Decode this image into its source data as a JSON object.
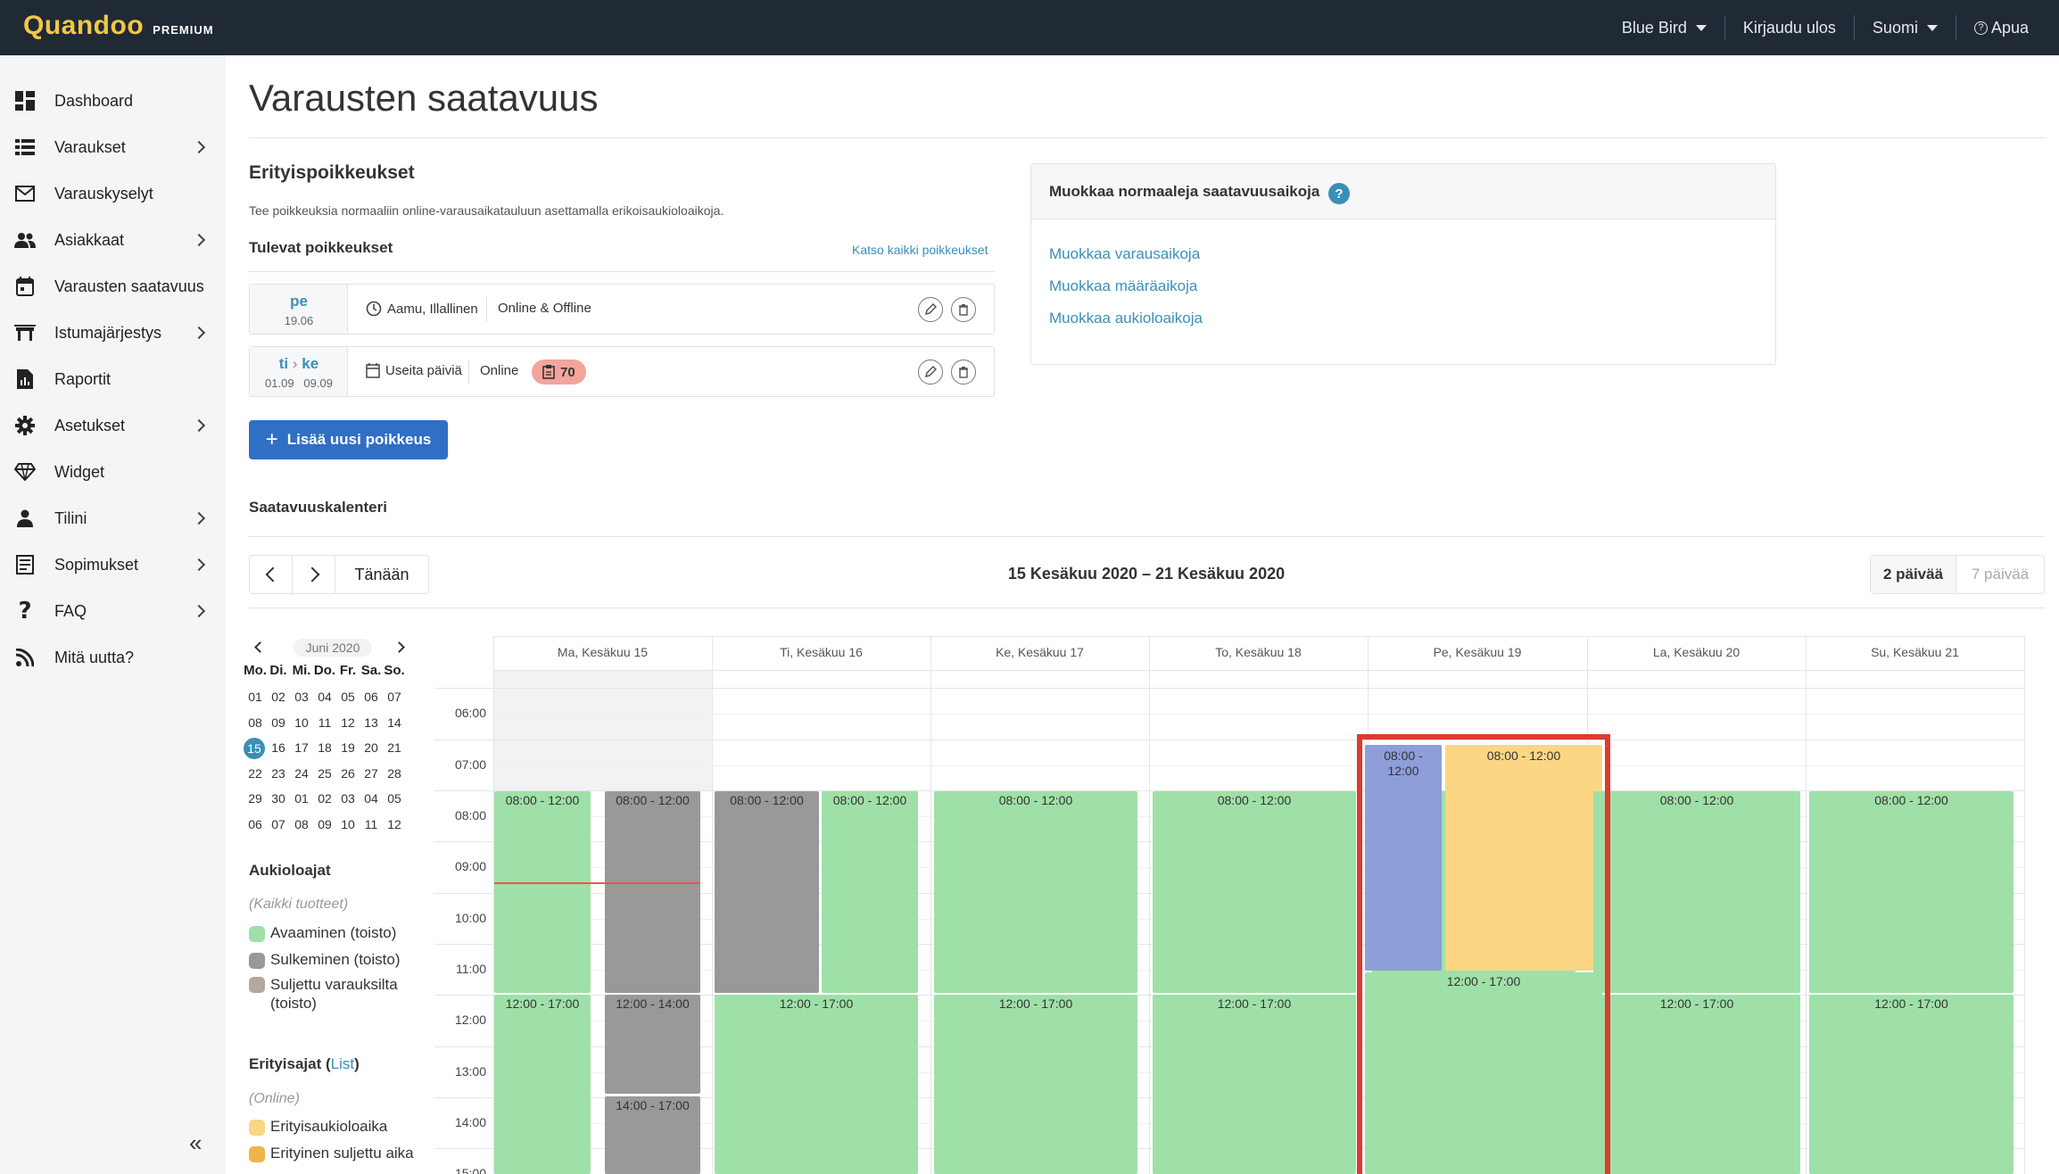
{
  "app": {
    "brand": "Quandoo",
    "brand_tag": "PREMIUM"
  },
  "topnav": {
    "restaurant": "Blue Bird",
    "logout": "Kirjaudu ulos",
    "language": "Suomi",
    "help": "Apua"
  },
  "sidebar": {
    "items": [
      {
        "label": "Dashboard",
        "icon": "dashboard-icon",
        "has_children": false
      },
      {
        "label": "Varaukset",
        "icon": "list-icon",
        "has_children": true
      },
      {
        "label": "Varauskyselyt",
        "icon": "mail-icon",
        "has_children": false
      },
      {
        "label": "Asiakkaat",
        "icon": "people-icon",
        "has_children": true
      },
      {
        "label": "Varausten saatavuus",
        "icon": "calendar-icon",
        "has_children": false
      },
      {
        "label": "Istumajärjestys",
        "icon": "table-icon",
        "has_children": true
      },
      {
        "label": "Raportit",
        "icon": "report-icon",
        "has_children": false
      },
      {
        "label": "Asetukset",
        "icon": "gear-icon",
        "has_children": true
      },
      {
        "label": "Widget",
        "icon": "diamond-icon",
        "has_children": false
      },
      {
        "label": "Tilini",
        "icon": "user-icon",
        "has_children": true
      },
      {
        "label": "Sopimukset",
        "icon": "document-icon",
        "has_children": true
      },
      {
        "label": "FAQ",
        "icon": "question-icon",
        "has_children": true
      },
      {
        "label": "Mitä uutta?",
        "icon": "rss-icon",
        "has_children": false
      }
    ],
    "collapse_label": "«"
  },
  "page": {
    "title": "Varausten saatavuus"
  },
  "exceptions": {
    "title": "Erityispoikkeukset",
    "description": "Tee poikkeuksia normaaliin online-varausaikatauluun asettamalla erikoisaukioloaikoja.",
    "upcoming_title": "Tulevat poikkeukset",
    "see_all": "Katso kaikki poikkeukset",
    "rows": [
      {
        "day": "pe",
        "date": "19.06",
        "when": "Aamu, Illallinen",
        "channel": "Online & Offline"
      },
      {
        "day_from": "ti",
        "day_to": "ke",
        "date_from": "01.09",
        "date_to": "09.09",
        "when": "Useita päiviä",
        "channel": "Online",
        "count": "70"
      }
    ],
    "add_button": "Lisää uusi poikkeus"
  },
  "normal_hours": {
    "title": "Muokkaa normaaleja saatavuusaikoja",
    "help": "?",
    "links": [
      "Muokkaa varausaikoja",
      "Muokkaa määräaikoja",
      "Muokkaa aukioloaikoja"
    ]
  },
  "calendar": {
    "section_title": "Saatavuuskalenteri",
    "today": "Tänään",
    "range": "15 Kesäkuu 2020 – 21 Kesäkuu 2020",
    "views": [
      "2 päivää",
      "7 päivää"
    ],
    "days": [
      "Ma, Kesäkuu 15",
      "Ti, Kesäkuu 16",
      "Ke, Kesäkuu 17",
      "To, Kesäkuu 18",
      "Pe, Kesäkuu 19",
      "La, Kesäkuu 20",
      "Su, Kesäkuu 21"
    ],
    "times": [
      "06:00",
      "07:00",
      "08:00",
      "09:00",
      "10:00",
      "11:00",
      "12:00",
      "13:00",
      "14:00",
      "15:00"
    ],
    "colors": {
      "opening": "#9fe0a8",
      "closing": "#999999",
      "closed_res": "#b5a79e",
      "special_open": "#fad685",
      "special_closed": "#f0b44d",
      "exception_online": "#8e9ed9",
      "highlight": "#e03a2c"
    }
  },
  "mini_calendar": {
    "month": "Juni 2020",
    "dow": [
      "Mo.",
      "Di.",
      "Mi.",
      "Do.",
      "Fr.",
      "Sa.",
      "So."
    ],
    "weeks": [
      [
        "01",
        "02",
        "03",
        "04",
        "05",
        "06",
        "07"
      ],
      [
        "08",
        "09",
        "10",
        "11",
        "12",
        "13",
        "14"
      ],
      [
        "15",
        "16",
        "17",
        "18",
        "19",
        "20",
        "21"
      ],
      [
        "22",
        "23",
        "24",
        "25",
        "26",
        "27",
        "28"
      ],
      [
        "29",
        "30",
        "01",
        "02",
        "03",
        "04",
        "05"
      ],
      [
        "06",
        "07",
        "08",
        "09",
        "10",
        "11",
        "12"
      ]
    ],
    "selected": "15"
  },
  "legend": {
    "hours_title": "Aukioloajat",
    "hours_sub": "(Kaikki tuotteet)",
    "hours_items": [
      "Avaaminen (toisto)",
      "Sulkeminen (toisto)",
      "Suljettu varauksilta (toisto)"
    ],
    "special_title": "Erityisajat",
    "special_link": "List",
    "special_sub": "(Online)",
    "special_items": [
      "Erityisaukioloaika",
      "Erityinen suljettu aika"
    ]
  }
}
